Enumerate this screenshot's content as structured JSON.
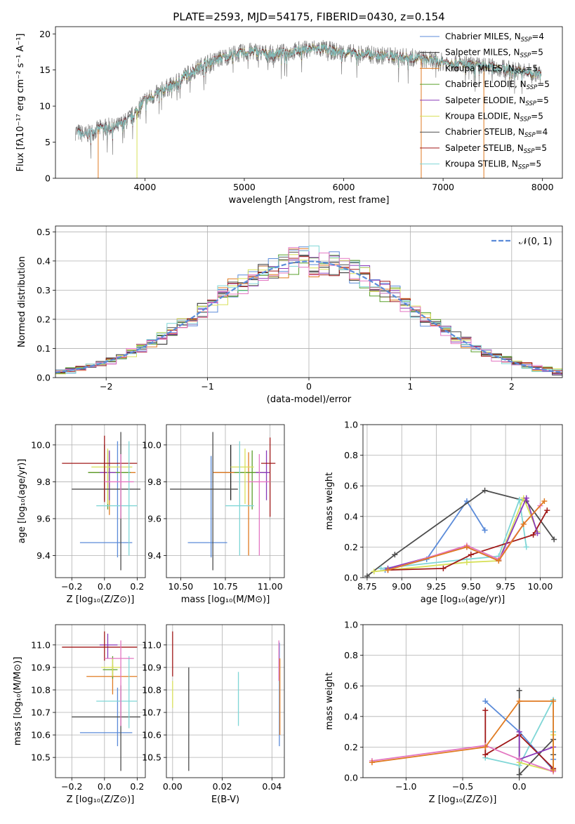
{
  "figure_title": "PLATE=2593, MJD=54175, FIBERID=0430, z=0.154",
  "colors": {
    "chabrier_miles": "#5b8bd9",
    "salpeter_miles": "#222222",
    "kroupa_miles": "#e07b22",
    "chabrier_elodie": "#5aa02c",
    "salpeter_elodie": "#8a3ab9",
    "kroupa_elodie": "#d8e05a",
    "chabrier_stelib": "#4d4d4d",
    "salpeter_stelib": "#a01818",
    "kroupa_stelib": "#7fd6d6",
    "pink": "#e377c2",
    "data": "#808080",
    "gaussian": "#5b8bd9"
  },
  "chart_data": [
    {
      "id": "spectrum",
      "type": "line",
      "xlabel": "wavelength [Angstrom, rest frame]",
      "ylabel": "Flux [fλ10⁻¹⁷ erg cm⁻² s⁻¹ A⁻¹]",
      "xlim": [
        3100,
        8200
      ],
      "ylim": [
        0,
        21
      ],
      "xticks": [
        4000,
        5000,
        6000,
        7000,
        8000
      ],
      "yticks": [
        0,
        5,
        10,
        15,
        20
      ],
      "grid": false,
      "legend_position": "right",
      "continuum": {
        "x": [
          3300,
          3400,
          3500,
          3600,
          3700,
          3800,
          3900,
          4000,
          4100,
          4200,
          4300,
          4400,
          4500,
          4600,
          4700,
          4800,
          4900,
          5000,
          5100,
          5200,
          5300,
          5400,
          5500,
          5600,
          5700,
          5800,
          5900,
          6000,
          6100,
          6200,
          6300,
          6400,
          6500,
          6600,
          6700,
          6800,
          6900,
          7000,
          7100,
          7200,
          7300,
          7400,
          7500,
          7600,
          7700,
          7800,
          7900,
          8000
        ],
        "y": [
          6.5,
          6.0,
          6.6,
          7.2,
          7.0,
          7.8,
          9.0,
          10.8,
          11.5,
          12.4,
          13.0,
          14.2,
          15.0,
          15.8,
          16.3,
          16.8,
          17.2,
          17.4,
          17.6,
          17.3,
          17.2,
          17.4,
          17.6,
          17.8,
          18.0,
          17.9,
          17.6,
          17.4,
          17.3,
          17.2,
          17.1,
          17.0,
          16.9,
          16.8,
          16.7,
          16.5,
          16.3,
          16.1,
          16.0,
          15.8,
          15.6,
          15.5,
          15.4,
          15.2,
          15.0,
          14.8,
          14.6,
          14.3
        ]
      },
      "legend": [
        "Chabrier MILES, N_SSP=4",
        "Salpeter MILES, N_SSP=5",
        "Kroupa MILES, N_SSP=5",
        "Chabrier ELODIE, N_SSP=5",
        "Salpeter ELODIE, N_SSP=5",
        "Kroupa ELODIE, N_SSP=5",
        "Chabrier STELIB, N_SSP=4",
        "Salpeter STELIB, N_SSP=5",
        "Kroupa STELIB, N_SSP=5"
      ]
    },
    {
      "id": "residuals",
      "type": "line",
      "xlabel": "(data-model)/error",
      "ylabel": "Normed distribution",
      "xlim": [
        -2.5,
        2.5
      ],
      "ylim": [
        0,
        0.52
      ],
      "xticks": [
        -2,
        -1,
        0,
        1,
        2
      ],
      "yticks": [
        0.0,
        0.1,
        0.2,
        0.3,
        0.4,
        0.5
      ],
      "grid": true,
      "legend": [
        "𝒩(0, 1)"
      ],
      "legend_position": "top-right",
      "gaussian": {
        "mean": 0,
        "sigma": 1
      },
      "histogram_bins": 50
    },
    {
      "id": "age-vs-z",
      "type": "scatter",
      "xlabel": "Z [log₁₀(Z/Z⊙)]",
      "ylabel": "age  [log₁₀(age/yr)]",
      "xlim": [
        -0.3,
        0.25
      ],
      "ylim": [
        9.28,
        10.11
      ],
      "xticks": [
        -0.2,
        0.0,
        0.2
      ],
      "yticks": [
        9.4,
        9.6,
        9.8,
        10.0
      ],
      "grid": true,
      "points": [
        {
          "x": 0.08,
          "y": 9.47,
          "xerr": [
            0.23,
            0.09
          ],
          "yerr": [
            0.08,
            0.55
          ],
          "color": "chabrier_miles"
        },
        {
          "x": 0.0,
          "y": 9.85,
          "xerr": [
            0.1,
            0.04
          ],
          "yerr": [
            0.15,
            0.15
          ],
          "color": "salpeter_miles"
        },
        {
          "x": 0.03,
          "y": 9.85,
          "xerr": [
            0.13,
            0.16
          ],
          "yerr": [
            0.23,
            0.11
          ],
          "color": "kroupa_miles"
        },
        {
          "x": 0.02,
          "y": 9.85,
          "xerr": [
            0.12,
            0.14
          ],
          "yerr": [
            0.2,
            0.12
          ],
          "color": "chabrier_elodie"
        },
        {
          "x": 0.03,
          "y": 9.85,
          "xerr": [
            0.06,
            0.04
          ],
          "yerr": [
            0.15,
            0.12
          ],
          "color": "salpeter_elodie"
        },
        {
          "x": 0.02,
          "y": 9.88,
          "xerr": [
            0.1,
            0.15
          ],
          "yerr": [
            0.2,
            0.1
          ],
          "color": "kroupa_elodie"
        },
        {
          "x": 0.1,
          "y": 9.76,
          "xerr": [
            0.3,
            0.12
          ],
          "yerr": [
            0.44,
            0.31
          ],
          "color": "chabrier_stelib"
        },
        {
          "x": 0.0,
          "y": 9.9,
          "xerr": [
            0.26,
            0.2
          ],
          "yerr": [
            0.21,
            0.15
          ],
          "color": "salpeter_stelib"
        },
        {
          "x": 0.15,
          "y": 9.67,
          "xerr": [
            0.2,
            0.05
          ],
          "yerr": [
            0.27,
            0.35
          ],
          "color": "kroupa_stelib"
        },
        {
          "x": 0.1,
          "y": 9.8,
          "xerr": [
            0.1,
            0.08
          ],
          "yerr": [
            0.2,
            0.15
          ],
          "color": "pink"
        }
      ]
    },
    {
      "id": "age-vs-mass",
      "type": "scatter",
      "xlabel": "mass [log₁₀(M/M⊙)]",
      "ylabel": "",
      "xlim": [
        10.42,
        11.08
      ],
      "ylim": [
        9.28,
        10.11
      ],
      "xticks": [
        10.5,
        10.75,
        11.0
      ],
      "xtick_labels": [
        "10.50",
        "10.75",
        "11.00"
      ],
      "yticks": [
        9.4,
        9.6,
        9.8,
        10.0
      ],
      "grid": true,
      "points": [
        {
          "x": 10.67,
          "y": 9.47,
          "xerr": [
            0.13,
            0.09
          ],
          "yerr": [
            0.08,
            0.47
          ],
          "color": "chabrier_miles"
        },
        {
          "x": 10.78,
          "y": 9.85,
          "xerr": [
            0.1,
            0.1
          ],
          "yerr": [
            0.15,
            0.15
          ],
          "color": "salpeter_miles"
        },
        {
          "x": 10.88,
          "y": 9.85,
          "xerr": [
            0.2,
            0.06
          ],
          "yerr": [
            0.45,
            0.11
          ],
          "color": "kroupa_miles"
        },
        {
          "x": 10.9,
          "y": 9.85,
          "xerr": [
            0.1,
            0.08
          ],
          "yerr": [
            0.2,
            0.12
          ],
          "color": "chabrier_elodie"
        },
        {
          "x": 10.98,
          "y": 9.85,
          "xerr": [
            0.06,
            0.02
          ],
          "yerr": [
            0.15,
            0.12
          ],
          "color": "salpeter_elodie"
        },
        {
          "x": 10.86,
          "y": 9.88,
          "xerr": [
            0.08,
            0.05
          ],
          "yerr": [
            0.2,
            0.1
          ],
          "color": "kroupa_elodie"
        },
        {
          "x": 10.68,
          "y": 9.76,
          "xerr": [
            0.24,
            0.14
          ],
          "yerr": [
            0.44,
            0.31
          ],
          "color": "chabrier_stelib"
        },
        {
          "x": 11.0,
          "y": 9.9,
          "xerr": [
            0.05,
            0.03
          ],
          "yerr": [
            0.29,
            0.14
          ],
          "color": "salpeter_stelib"
        },
        {
          "x": 10.83,
          "y": 9.67,
          "xerr": [
            0.08,
            0.08
          ],
          "yerr": [
            0.27,
            0.35
          ],
          "color": "kroupa_stelib"
        },
        {
          "x": 10.94,
          "y": 9.8,
          "xerr": [
            0.06,
            0.06
          ],
          "yerr": [
            0.4,
            0.15
          ],
          "color": "pink"
        }
      ]
    },
    {
      "id": "weight-vs-age",
      "type": "line",
      "xlabel": "age  [log₁₀(age/yr)]",
      "ylabel": "mass weight",
      "xlim": [
        8.72,
        10.16
      ],
      "ylim": [
        0,
        1.0
      ],
      "xticks": [
        8.75,
        9.0,
        9.25,
        9.5,
        9.75,
        10.0
      ],
      "xtick_labels": [
        "8.75",
        "9.00",
        "9.25",
        "9.50",
        "9.75",
        "10.00"
      ],
      "yticks": [
        0.0,
        0.2,
        0.4,
        0.6,
        0.8,
        1.0
      ],
      "grid": true,
      "series": [
        {
          "color": "chabrier_miles",
          "x": [
            8.88,
            9.18,
            9.47,
            9.6,
            9.6
          ],
          "y": [
            0.05,
            0.12,
            0.5,
            0.31,
            0.31
          ]
        },
        {
          "color": "chabrier_stelib",
          "x": [
            8.75,
            8.95,
            9.6,
            9.9,
            10.1
          ],
          "y": [
            0.01,
            0.15,
            0.57,
            0.5,
            0.25
          ]
        },
        {
          "color": "kroupa_stelib",
          "x": [
            8.85,
            9.47,
            9.7,
            9.85,
            9.9
          ],
          "y": [
            0.06,
            0.12,
            0.14,
            0.51,
            0.2
          ]
        },
        {
          "color": "kroupa_elodie",
          "x": [
            8.8,
            9.47,
            9.7,
            9.88,
            9.98
          ],
          "y": [
            0.04,
            0.1,
            0.11,
            0.52,
            0.3
          ]
        },
        {
          "color": "salpeter_stelib",
          "x": [
            8.9,
            9.3,
            9.5,
            9.95,
            10.05
          ],
          "y": [
            0.05,
            0.06,
            0.15,
            0.28,
            0.44
          ]
        },
        {
          "color": "salpeter_elodie",
          "x": [
            8.9,
            9.47,
            9.7,
            9.9,
            9.98
          ],
          "y": [
            0.06,
            0.2,
            0.11,
            0.52,
            0.29
          ]
        },
        {
          "color": "pink",
          "x": [
            8.9,
            9.47,
            9.7,
            9.88,
            10.0
          ],
          "y": [
            0.05,
            0.21,
            0.12,
            0.35,
            0.47
          ]
        },
        {
          "color": "kroupa_miles",
          "x": [
            8.9,
            9.47,
            9.7,
            9.88,
            10.03
          ],
          "y": [
            0.05,
            0.2,
            0.11,
            0.35,
            0.5
          ]
        }
      ]
    },
    {
      "id": "mass-vs-z",
      "type": "scatter",
      "xlabel": "Z [log₁₀(Z/Z⊙)]",
      "ylabel": "mass [log₁₀(M/M⊙)]",
      "xlim": [
        -0.3,
        0.25
      ],
      "ylim": [
        10.41,
        11.09
      ],
      "xticks": [
        -0.2,
        0.0,
        0.2
      ],
      "yticks": [
        10.5,
        10.6,
        10.7,
        10.8,
        10.9,
        11.0
      ],
      "grid": true,
      "points": [
        {
          "x": 0.08,
          "y": 10.61,
          "xerr": [
            0.23,
            0.09
          ],
          "yerr": [
            0.06,
            0.2
          ],
          "color": "chabrier_miles"
        },
        {
          "x": 0.05,
          "y": 10.86,
          "xerr": [
            0.16,
            0.15
          ],
          "yerr": [
            0.08,
            0.05
          ],
          "color": "kroupa_miles"
        },
        {
          "x": 0.05,
          "y": 10.89,
          "xerr": [
            0.06,
            0.03
          ],
          "yerr": [
            0.04,
            0.06
          ],
          "color": "chabrier_elodie"
        },
        {
          "x": 0.02,
          "y": 11.0,
          "xerr": [
            0.05,
            0.06
          ],
          "yerr": [
            0.06,
            0.05
          ],
          "color": "salpeter_elodie"
        },
        {
          "x": 0.05,
          "y": 10.9,
          "xerr": [
            0.07,
            0.05
          ],
          "yerr": [
            0.04,
            0.04
          ],
          "color": "kroupa_elodie"
        },
        {
          "x": 0.1,
          "y": 10.68,
          "xerr": [
            0.3,
            0.12
          ],
          "yerr": [
            0.24,
            0.14
          ],
          "color": "chabrier_stelib"
        },
        {
          "x": 0.0,
          "y": 10.99,
          "xerr": [
            0.26,
            0.2
          ],
          "yerr": [
            0.06,
            0.07
          ],
          "color": "salpeter_stelib"
        },
        {
          "x": 0.15,
          "y": 10.75,
          "xerr": [
            0.2,
            0.05
          ],
          "yerr": [
            0.12,
            0.2
          ],
          "color": "kroupa_stelib"
        },
        {
          "x": 0.1,
          "y": 10.94,
          "xerr": [
            0.1,
            0.08
          ],
          "yerr": [
            0.3,
            0.08
          ],
          "color": "pink"
        }
      ]
    },
    {
      "id": "mass-vs-ebv",
      "type": "scatter",
      "xlabel": "E(B-V)",
      "ylabel": "",
      "xlim": [
        -0.0025,
        0.045
      ],
      "ylim": [
        10.41,
        11.09
      ],
      "xticks": [
        0.0,
        0.02,
        0.04
      ],
      "xtick_labels": [
        "0.00",
        "0.02",
        "0.04"
      ],
      "yticks": [
        10.5,
        10.6,
        10.7,
        10.8,
        10.9,
        11.0
      ],
      "grid": true,
      "points": [
        {
          "x": 0.0,
          "y": 10.78,
          "xerr": [
            0,
            0
          ],
          "yerr": [
            0.06,
            0.06
          ],
          "color": "kroupa_elodie"
        },
        {
          "x": 0.0,
          "y": 10.96,
          "xerr": [
            0,
            0
          ],
          "yerr": [
            0.1,
            0.1
          ],
          "color": "salpeter_stelib"
        },
        {
          "x": 0.0065,
          "y": 10.67,
          "xerr": [
            0,
            0
          ],
          "yerr": [
            0.23,
            0.23
          ],
          "color": "chabrier_stelib"
        },
        {
          "x": 0.0265,
          "y": 10.76,
          "xerr": [
            0,
            0
          ],
          "yerr": [
            0.12,
            0.12
          ],
          "color": "kroupa_stelib"
        },
        {
          "x": 0.043,
          "y": 10.78,
          "xerr": [
            0,
            0
          ],
          "yerr": [
            0.23,
            0.23
          ],
          "color": "chabrier_miles"
        },
        {
          "x": 0.0432,
          "y": 10.77,
          "xerr": [
            0,
            0
          ],
          "yerr": [
            0.17,
            0.17
          ],
          "color": "kroupa_miles"
        },
        {
          "x": 0.0428,
          "y": 10.93,
          "xerr": [
            0,
            0
          ],
          "yerr": [
            0.09,
            0.09
          ],
          "color": "pink"
        }
      ]
    },
    {
      "id": "weight-vs-z",
      "type": "line",
      "xlabel": "Z [log₁₀(Z/Z⊙)]",
      "ylabel": "mass weight",
      "xlim": [
        -1.38,
        0.38
      ],
      "ylim": [
        0,
        1.0
      ],
      "xticks": [
        -1.0,
        -0.5,
        0.0
      ],
      "xtick_labels": [
        "−1.0",
        "−0.5",
        "0.0"
      ],
      "yticks": [
        0.0,
        0.2,
        0.4,
        0.6,
        0.8,
        1.0
      ],
      "grid": true,
      "series": [
        {
          "color": "chabrier_miles",
          "x": [
            -0.3,
            0.0,
            0.3,
            0.3
          ],
          "y": [
            0.5,
            0.3,
            0.05,
            0.12
          ]
        },
        {
          "color": "chabrier_stelib",
          "x": [
            0.0,
            0.0,
            0.3,
            0.3
          ],
          "y": [
            0.57,
            0.02,
            0.25,
            0.15
          ]
        },
        {
          "color": "kroupa_stelib",
          "x": [
            -0.3,
            0.0,
            0.3,
            0.3
          ],
          "y": [
            0.13,
            0.08,
            0.51,
            0.3
          ]
        },
        {
          "color": "salpeter_stelib",
          "x": [
            -0.3,
            -0.3,
            0.0,
            0.3
          ],
          "y": [
            0.44,
            0.15,
            0.28,
            0.06
          ]
        },
        {
          "color": "salpeter_elodie",
          "x": [
            0.0,
            0.0,
            0.3
          ],
          "y": [
            0.3,
            0.12,
            0.2
          ]
        },
        {
          "color": "kroupa_elodie",
          "x": [
            0.0,
            0.3,
            0.3
          ],
          "y": [
            0.1,
            0.04,
            0.28
          ]
        },
        {
          "color": "pink",
          "x": [
            -1.3,
            -0.3,
            0.0,
            0.3
          ],
          "y": [
            0.11,
            0.21,
            0.12,
            0.04
          ]
        },
        {
          "color": "kroupa_miles",
          "x": [
            -1.3,
            -0.3,
            0.0,
            0.3,
            0.3
          ],
          "y": [
            0.1,
            0.2,
            0.5,
            0.5,
            0.05
          ]
        }
      ]
    }
  ]
}
